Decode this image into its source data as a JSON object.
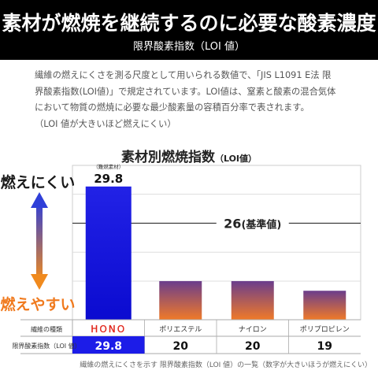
{
  "header": {
    "title": "素材が燃焼を継続するのに必要な酸素濃度",
    "subtitle": "限界酸素指数（LOI 値）"
  },
  "description": [
    "繊維の燃えにくさを測る尺度として用いられる数値で、「JIS L1091 E法 限",
    "界酸素指数(LOI値)」で規定されています。LOI値は、窒素と酸素の混合気体",
    "において物質の燃焼に必要な最少酸素量の容積百分率で表されます。",
    "（LOI 値が大きいほど燃えにくい）"
  ],
  "chart_title": {
    "main": "素材別燃焼指数",
    "unit": "（LOI値）"
  },
  "scale_labels": {
    "top": "燃えにくい",
    "bottom": "燃えやすい"
  },
  "colors": {
    "hono_bar": "#1c1ce8",
    "other_bar_top": "#6b3d8c",
    "other_bar_bottom": "#f07a28",
    "arrow_top": "#2f3fd8",
    "arrow_bottom": "#f08a1e",
    "label_top": "#1a1a1a",
    "label_bottom": "#f07a1e",
    "reference_line": "#333333",
    "table_highlight": "#1c1ce8"
  },
  "chart_data": {
    "type": "bar",
    "categories": [
      "HONO",
      "ポリエステル",
      "ナイロン",
      "ポリプロピレン"
    ],
    "values": [
      29.8,
      20,
      20,
      19
    ],
    "value_labels": [
      "29.8",
      "20",
      "20",
      "19"
    ],
    "annotation_hono": "（難燃素材）",
    "reference_line": {
      "value": 26,
      "label": "26",
      "label_suffix": "(基準値)"
    },
    "title": "素材別燃焼指数",
    "xlabel": "",
    "ylabel": "",
    "ylim": [
      16,
      31.5
    ],
    "grid": true,
    "grid_values": [
      20,
      23,
      26,
      29
    ]
  },
  "table": {
    "row1_header": "繊維の種類",
    "row2_header": "限界酸素指数（LOI 値）"
  },
  "footnote": "繊維の燃えにくさを示す 限界酸素指数（LOI 値）の一覧（数字が大きいほうが燃えにくい）"
}
